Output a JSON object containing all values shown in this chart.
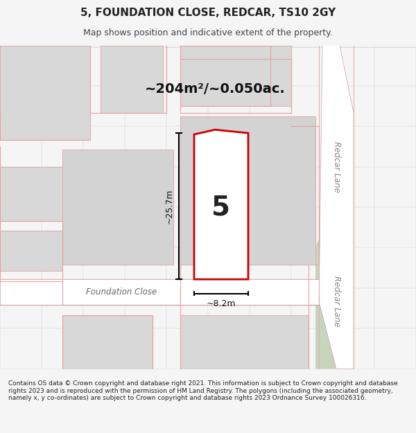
{
  "title": "5, FOUNDATION CLOSE, REDCAR, TS10 2GY",
  "subtitle": "Map shows position and indicative extent of the property.",
  "area_text": "~204m²/~0.050ac.",
  "dim_height": "~25.7m",
  "dim_width": "~8.2m",
  "plot_number": "5",
  "street_label1": "Foundation Close",
  "street_label2a": "Redcar Lane",
  "street_label2b": "Redcar Lane",
  "footer": "Contains OS data © Crown copyright and database right 2021. This information is subject to Crown copyright and database rights 2023 and is reproduced with the permission of HM Land Registry. The polygons (including the associated geometry, namely x, y co-ordinates) are subject to Crown copyright and database rights 2023 Ordnance Survey 100026316.",
  "bg_color": "#f5f4f0",
  "map_bg": "#ffffff",
  "road_color": "#ffffff",
  "building_fill": "#d6d6d6",
  "building_outline": "#e8b8b8",
  "highlight_fill": "#f0f0f0",
  "highlight_outline": "#cc0000",
  "green_fill": "#c8d8c0",
  "road_outline": "#e8b8b8"
}
